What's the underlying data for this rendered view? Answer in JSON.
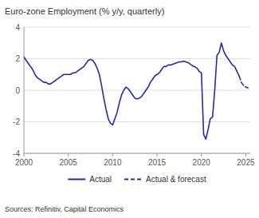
{
  "chart_data": {
    "type": "line",
    "title": "Euro-zone Employment (% y/y, quarterly)",
    "source": "Sources: Refinitiv, Capital Economics",
    "xlim": [
      2000,
      2025.5
    ],
    "xticks": [
      2000,
      2005,
      2010,
      2015,
      2020,
      2025
    ],
    "ylim": [
      -4,
      4
    ],
    "yticks": [
      -4,
      -2,
      0,
      2,
      4
    ],
    "grid": true,
    "legend": "bottom",
    "series": [
      {
        "name": "Actual",
        "color": "#2828A8",
        "line_style": "solid",
        "x": [
          2000.0,
          2000.25,
          2000.5,
          2000.75,
          2001.0,
          2001.25,
          2001.5,
          2001.75,
          2002.0,
          2002.25,
          2002.5,
          2002.75,
          2003.0,
          2003.25,
          2003.5,
          2003.75,
          2004.0,
          2004.25,
          2004.5,
          2004.75,
          2005.0,
          2005.25,
          2005.5,
          2005.75,
          2006.0,
          2006.25,
          2006.5,
          2006.75,
          2007.0,
          2007.25,
          2007.5,
          2007.75,
          2008.0,
          2008.25,
          2008.5,
          2008.75,
          2009.0,
          2009.25,
          2009.5,
          2009.75,
          2010.0,
          2010.25,
          2010.5,
          2010.75,
          2011.0,
          2011.25,
          2011.5,
          2011.75,
          2012.0,
          2012.25,
          2012.5,
          2012.75,
          2013.0,
          2013.25,
          2013.5,
          2013.75,
          2014.0,
          2014.25,
          2014.5,
          2014.75,
          2015.0,
          2015.25,
          2015.5,
          2015.75,
          2016.0,
          2016.25,
          2016.5,
          2016.75,
          2017.0,
          2017.25,
          2017.5,
          2017.75,
          2018.0,
          2018.25,
          2018.5,
          2018.75,
          2019.0,
          2019.25,
          2019.5,
          2019.75,
          2020.0,
          2020.25,
          2020.5,
          2020.75,
          2021.0,
          2021.25,
          2021.5,
          2021.75,
          2022.0,
          2022.25,
          2022.5,
          2022.75,
          2023.0,
          2023.25,
          2023.5,
          2023.75,
          2024.0,
          2024.25
        ],
        "values": [
          2.1,
          1.9,
          1.7,
          1.5,
          1.3,
          1.0,
          0.8,
          0.7,
          0.6,
          0.5,
          0.5,
          0.4,
          0.4,
          0.5,
          0.6,
          0.7,
          0.8,
          0.9,
          1.0,
          1.0,
          1.0,
          1.0,
          1.1,
          1.1,
          1.2,
          1.3,
          1.4,
          1.5,
          1.7,
          1.9,
          1.95,
          1.9,
          1.7,
          1.4,
          1.0,
          0.3,
          -0.5,
          -1.2,
          -1.8,
          -2.1,
          -2.2,
          -1.8,
          -1.4,
          -0.8,
          -0.3,
          0.0,
          0.2,
          0.1,
          -0.1,
          -0.3,
          -0.5,
          -0.55,
          -0.5,
          -0.4,
          -0.2,
          0.0,
          0.2,
          0.5,
          0.7,
          0.9,
          1.0,
          1.1,
          1.3,
          1.5,
          1.5,
          1.6,
          1.6,
          1.65,
          1.7,
          1.75,
          1.8,
          1.8,
          1.85,
          1.8,
          1.75,
          1.65,
          1.55,
          1.5,
          1.4,
          1.2,
          1.1,
          -2.8,
          -3.1,
          -2.5,
          -1.8,
          -1.7,
          0.0,
          2.2,
          2.4,
          3.0,
          2.5,
          2.2,
          2.0,
          1.8,
          1.6,
          1.5,
          1.2,
          0.9
        ]
      },
      {
        "name": "Actual & forecast",
        "color": "#2828A8",
        "line_style": "dashed",
        "x": [
          2024.25,
          2024.5,
          2024.75,
          2025.0,
          2025.25
        ],
        "values": [
          0.9,
          0.5,
          0.3,
          0.2,
          0.15
        ]
      }
    ]
  }
}
